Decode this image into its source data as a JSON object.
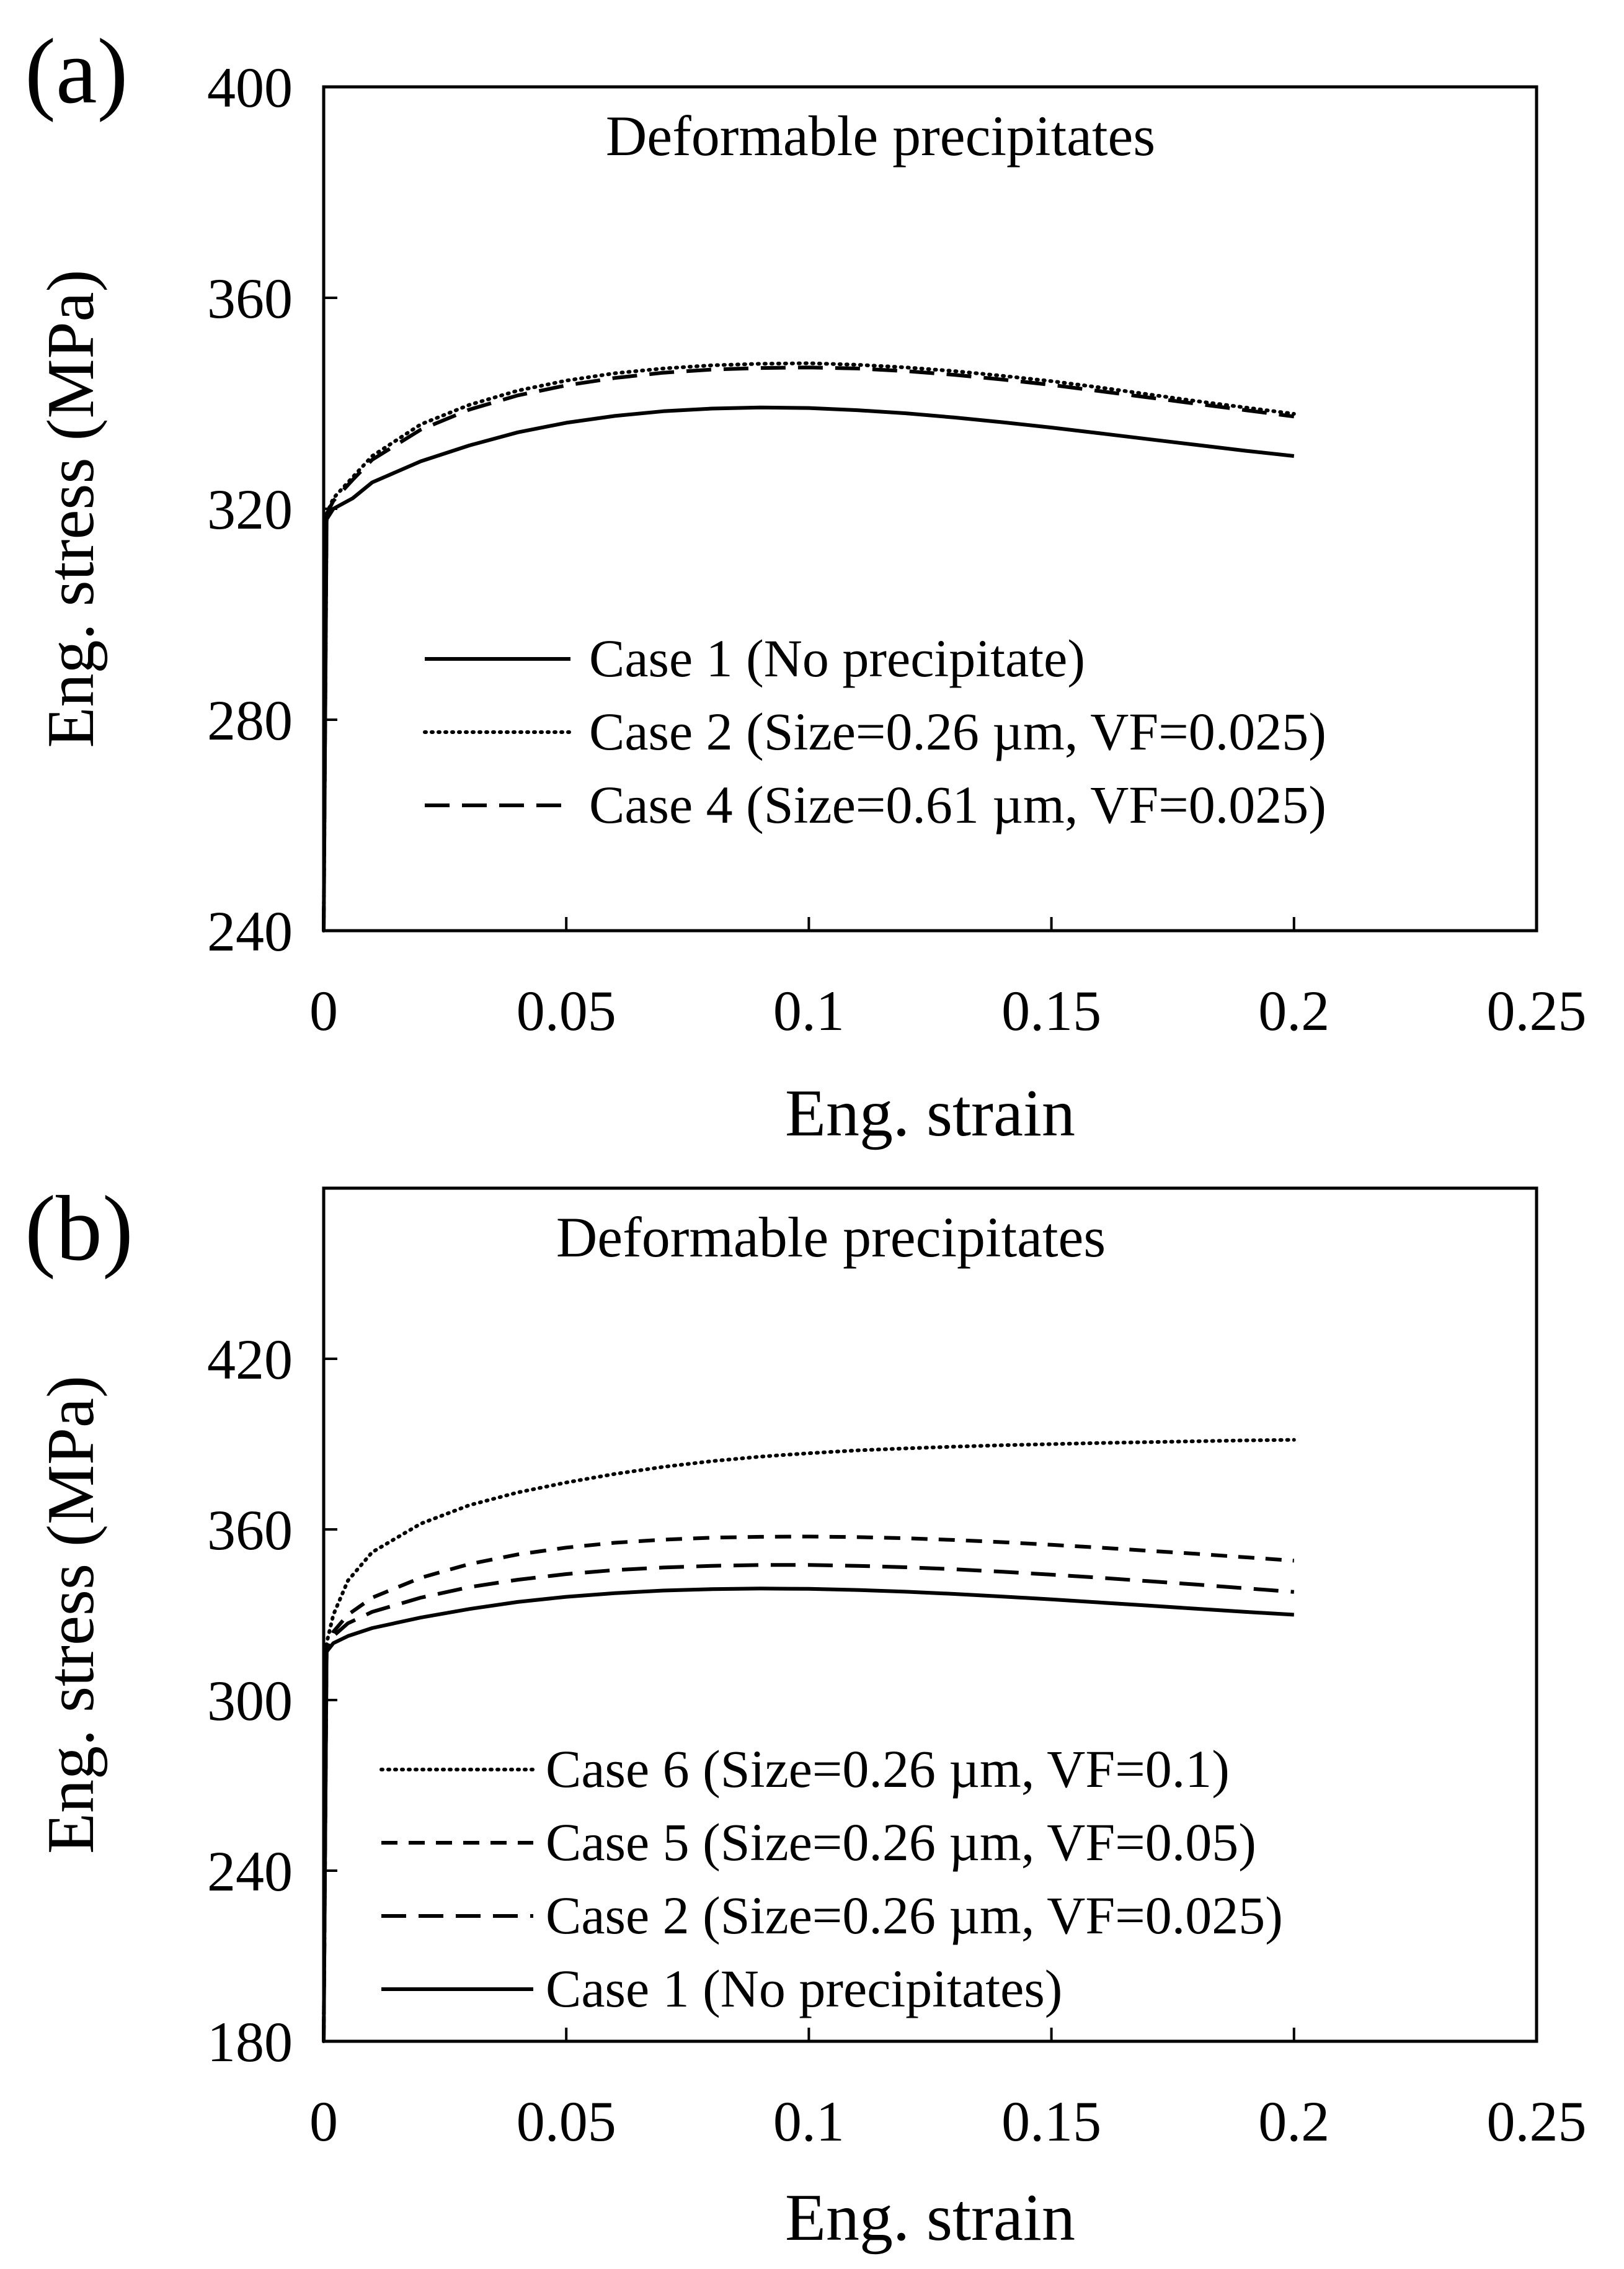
{
  "chart_data": [
    {
      "type": "line",
      "panel_label": "(a)",
      "annotation": "Deformable precipitates",
      "xlabel": "Eng. strain",
      "ylabel": "Eng. stress (MPa)",
      "xlim": [
        0,
        0.25
      ],
      "ylim": [
        240,
        400
      ],
      "xticks": [
        "0",
        "0.05",
        "0.1",
        "0.15",
        "0.2",
        "0.25"
      ],
      "yticks": [
        "240",
        "280",
        "320",
        "360",
        "400"
      ],
      "grid": false,
      "legend_position": "lower-center",
      "series": [
        {
          "name": "Case 1 (No precipitate)",
          "style": "solid",
          "points": [
            [
              0,
              240
            ],
            [
              0.0006,
              318
            ],
            [
              0.002,
              320
            ],
            [
              0.006,
              322
            ],
            [
              0.01,
              325
            ],
            [
              0.02,
              329
            ],
            [
              0.03,
              332
            ],
            [
              0.04,
              334.5
            ],
            [
              0.05,
              336.3
            ],
            [
              0.06,
              337.6
            ],
            [
              0.07,
              338.5
            ],
            [
              0.08,
              339
            ],
            [
              0.09,
              339.2
            ],
            [
              0.1,
              339.1
            ],
            [
              0.11,
              338.7
            ],
            [
              0.12,
              338.1
            ],
            [
              0.13,
              337.3
            ],
            [
              0.14,
              336.4
            ],
            [
              0.15,
              335.4
            ],
            [
              0.16,
              334.3
            ],
            [
              0.17,
              333.2
            ],
            [
              0.18,
              332.1
            ],
            [
              0.19,
              331
            ],
            [
              0.2,
              330
            ]
          ]
        },
        {
          "name": "Case 2 (Size=0.26 µm, VF=0.025)",
          "style": "dotted",
          "points": [
            [
              0,
              240
            ],
            [
              0.0006,
              319
            ],
            [
              0.002,
              322
            ],
            [
              0.006,
              326
            ],
            [
              0.01,
              330
            ],
            [
              0.02,
              336
            ],
            [
              0.03,
              339.7
            ],
            [
              0.04,
              342.4
            ],
            [
              0.05,
              344.3
            ],
            [
              0.06,
              345.7
            ],
            [
              0.07,
              346.6
            ],
            [
              0.08,
              347.2
            ],
            [
              0.09,
              347.5
            ],
            [
              0.1,
              347.6
            ],
            [
              0.11,
              347.3
            ],
            [
              0.12,
              346.8
            ],
            [
              0.13,
              346.1
            ],
            [
              0.14,
              345.2
            ],
            [
              0.15,
              344.2
            ],
            [
              0.16,
              343
            ],
            [
              0.17,
              341.7
            ],
            [
              0.18,
              340.4
            ],
            [
              0.19,
              339.2
            ],
            [
              0.2,
              338
            ]
          ]
        },
        {
          "name": "Case 4 (Size=0.61 µm, VF=0.025)",
          "style": "long-dash",
          "points": [
            [
              0,
              240
            ],
            [
              0.0006,
              319
            ],
            [
              0.002,
              321.5
            ],
            [
              0.006,
              325.5
            ],
            [
              0.01,
              329.3
            ],
            [
              0.02,
              335
            ],
            [
              0.03,
              338.8
            ],
            [
              0.04,
              341.5
            ],
            [
              0.05,
              343.4
            ],
            [
              0.06,
              344.8
            ],
            [
              0.07,
              345.8
            ],
            [
              0.08,
              346.4
            ],
            [
              0.09,
              346.7
            ],
            [
              0.1,
              346.8
            ],
            [
              0.11,
              346.6
            ],
            [
              0.12,
              346.1
            ],
            [
              0.13,
              345.4
            ],
            [
              0.14,
              344.5
            ],
            [
              0.15,
              343.5
            ],
            [
              0.16,
              342.3
            ],
            [
              0.17,
              341.1
            ],
            [
              0.18,
              339.9
            ],
            [
              0.19,
              338.7
            ],
            [
              0.2,
              337.5
            ]
          ]
        }
      ]
    },
    {
      "type": "line",
      "panel_label": "(b)",
      "annotation": "Deformable precipitates",
      "xlabel": "Eng. strain",
      "ylabel": "Eng. stress (MPa)",
      "xlim": [
        0,
        0.25
      ],
      "ylim": [
        180,
        480
      ],
      "xticks": [
        "0",
        "0.05",
        "0.1",
        "0.15",
        "0.2",
        "0.25"
      ],
      "yticks": [
        "180",
        "240",
        "300",
        "360",
        "420"
      ],
      "grid": false,
      "legend_position": "lower-center",
      "series": [
        {
          "name": "Case 6 (Size=0.26 µm, VF=0.1)",
          "style": "dotted",
          "points": [
            [
              0,
              180
            ],
            [
              0.0006,
              320
            ],
            [
              0.002,
              330
            ],
            [
              0.005,
              342
            ],
            [
              0.01,
              352
            ],
            [
              0.02,
              362
            ],
            [
              0.03,
              368.5
            ],
            [
              0.04,
              373
            ],
            [
              0.05,
              376.5
            ],
            [
              0.06,
              379.5
            ],
            [
              0.07,
              382
            ],
            [
              0.08,
              384
            ],
            [
              0.09,
              385.6
            ],
            [
              0.1,
              386.8
            ],
            [
              0.11,
              387.8
            ],
            [
              0.12,
              388.5
            ],
            [
              0.13,
              389.1
            ],
            [
              0.14,
              389.6
            ],
            [
              0.15,
              390
            ],
            [
              0.16,
              390.4
            ],
            [
              0.17,
              390.7
            ],
            [
              0.18,
              391
            ],
            [
              0.19,
              391.3
            ],
            [
              0.2,
              391.5
            ]
          ]
        },
        {
          "name": "Case 5 (Size=0.26 µm, VF=0.05)",
          "style": "dashed",
          "points": [
            [
              0,
              180
            ],
            [
              0.0006,
              318
            ],
            [
              0.002,
              324
            ],
            [
              0.005,
              330
            ],
            [
              0.01,
              336
            ],
            [
              0.02,
              343
            ],
            [
              0.03,
              347.8
            ],
            [
              0.04,
              351.2
            ],
            [
              0.05,
              353.6
            ],
            [
              0.06,
              355.3
            ],
            [
              0.07,
              356.4
            ],
            [
              0.08,
              357.1
            ],
            [
              0.09,
              357.4
            ],
            [
              0.1,
              357.5
            ],
            [
              0.11,
              357.3
            ],
            [
              0.12,
              356.9
            ],
            [
              0.13,
              356.3
            ],
            [
              0.14,
              355.5
            ],
            [
              0.15,
              354.6
            ],
            [
              0.16,
              353.6
            ],
            [
              0.17,
              352.5
            ],
            [
              0.18,
              351.4
            ],
            [
              0.19,
              350.2
            ],
            [
              0.2,
              349
            ]
          ]
        },
        {
          "name": "Case 2 (Size=0.26 µm, VF=0.025)",
          "style": "long-dash",
          "points": [
            [
              0,
              180
            ],
            [
              0.0006,
              318
            ],
            [
              0.002,
              322.5
            ],
            [
              0.005,
              327
            ],
            [
              0.01,
              331
            ],
            [
              0.02,
              336
            ],
            [
              0.03,
              339.7
            ],
            [
              0.04,
              342.3
            ],
            [
              0.05,
              344.3
            ],
            [
              0.06,
              345.7
            ],
            [
              0.07,
              346.6
            ],
            [
              0.08,
              347.2
            ],
            [
              0.09,
              347.5
            ],
            [
              0.1,
              347.5
            ],
            [
              0.11,
              347.2
            ],
            [
              0.12,
              346.7
            ],
            [
              0.13,
              346
            ],
            [
              0.14,
              345.1
            ],
            [
              0.15,
              344.1
            ],
            [
              0.16,
              343
            ],
            [
              0.17,
              341.8
            ],
            [
              0.18,
              340.6
            ],
            [
              0.19,
              339.3
            ],
            [
              0.2,
              338
            ]
          ]
        },
        {
          "name": "Case 1 (No precipitates)",
          "style": "solid",
          "points": [
            [
              0,
              180
            ],
            [
              0.0006,
              317
            ],
            [
              0.002,
              320
            ],
            [
              0.005,
              322.5
            ],
            [
              0.01,
              325.3
            ],
            [
              0.02,
              329
            ],
            [
              0.03,
              332
            ],
            [
              0.04,
              334.5
            ],
            [
              0.05,
              336.3
            ],
            [
              0.06,
              337.6
            ],
            [
              0.07,
              338.5
            ],
            [
              0.08,
              339
            ],
            [
              0.09,
              339.2
            ],
            [
              0.1,
              339.1
            ],
            [
              0.11,
              338.7
            ],
            [
              0.12,
              338.1
            ],
            [
              0.13,
              337.3
            ],
            [
              0.14,
              336.4
            ],
            [
              0.15,
              335.4
            ],
            [
              0.16,
              334.3
            ],
            [
              0.17,
              333.2
            ],
            [
              0.18,
              332.1
            ],
            [
              0.19,
              331
            ],
            [
              0.2,
              330
            ]
          ]
        }
      ]
    }
  ]
}
